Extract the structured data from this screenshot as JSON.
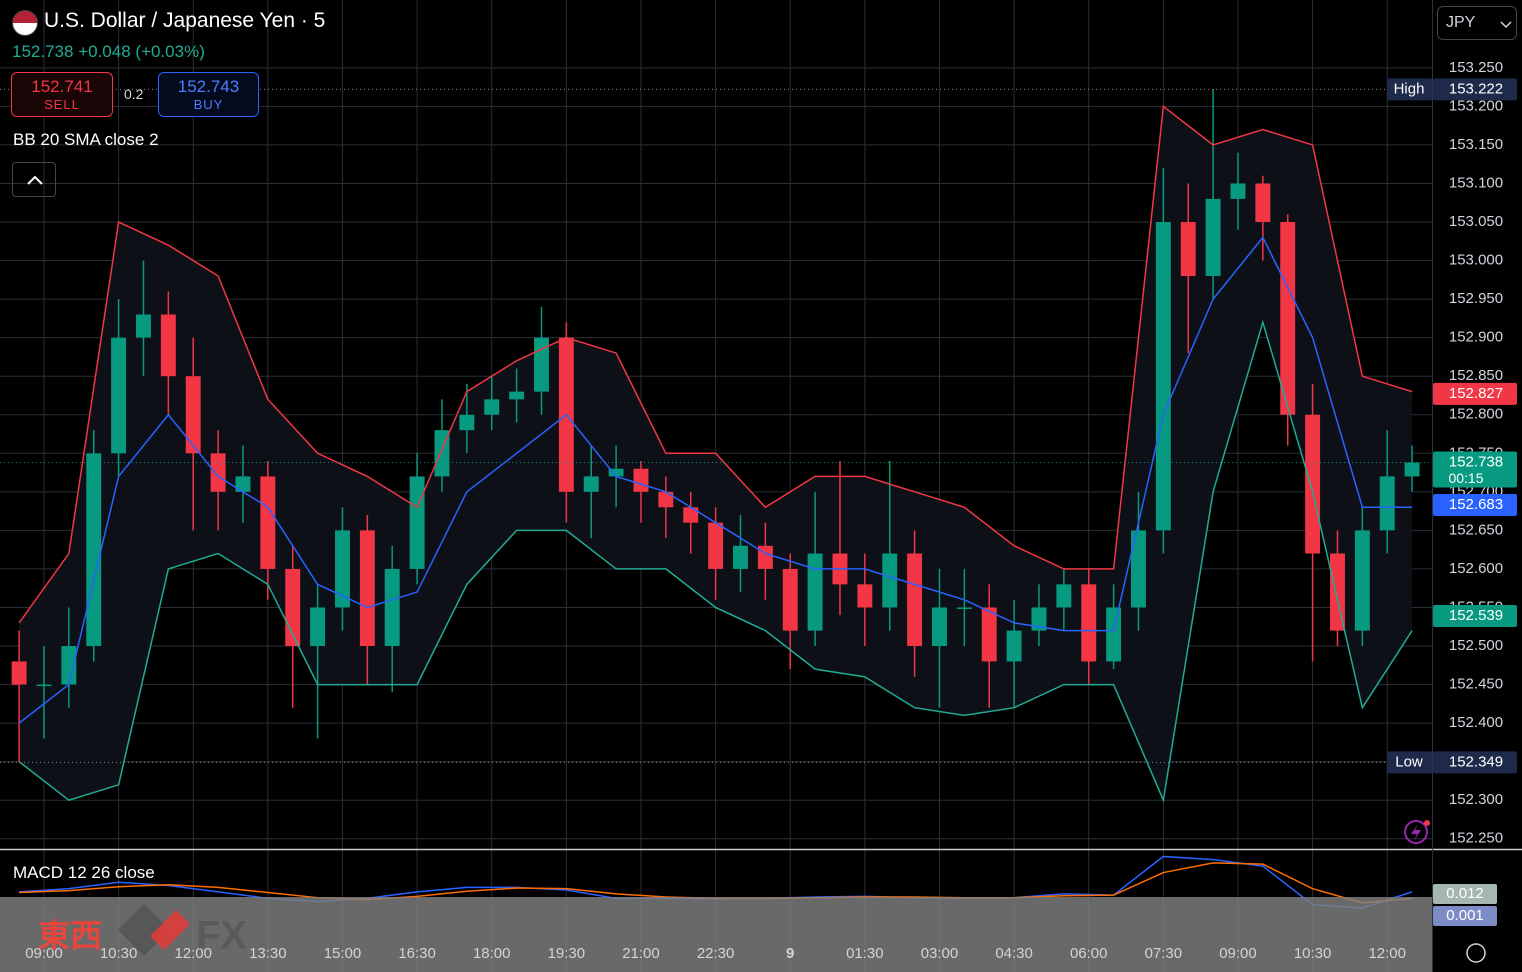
{
  "header": {
    "title": "U.S. Dollar / Japanese Yen · 5",
    "last": "152.738",
    "change": "+0.048",
    "change_pct": "(+0.03%)",
    "sell_price": "152.741",
    "sell_label": "SELL",
    "spread": "0.2",
    "buy_price": "152.743",
    "buy_label": "BUY",
    "indicator": "BB 20 SMA close 2",
    "currency": "JPY",
    "watermark_cn": "東西",
    "watermark_fx": "FX"
  },
  "chart_data": [
    {
      "type": "candlestick",
      "up_color": "#089981",
      "down_color": "#f23645",
      "grid": true,
      "x": [
        -0.5,
        0,
        0.5,
        1,
        1.5,
        2,
        2.5,
        3,
        3.5,
        4,
        4.5,
        5,
        5.5,
        6,
        6.5,
        7,
        7.5,
        8,
        8.5,
        9,
        9.5,
        10,
        10.5,
        11,
        11.5,
        12,
        12.5,
        13,
        13.5,
        14,
        14.5,
        15,
        15.5,
        16,
        16.5,
        17,
        17.5,
        18,
        18.5,
        19,
        19.5,
        20,
        20.5,
        21,
        21.5,
        22,
        22.5,
        23,
        23.5,
        24,
        24.5,
        25,
        25.5,
        26,
        26.5,
        27,
        27.5
      ],
      "open": [
        152.48,
        152.45,
        152.45,
        152.5,
        152.75,
        152.9,
        152.93,
        152.85,
        152.75,
        152.7,
        152.72,
        152.6,
        152.5,
        152.55,
        152.65,
        152.5,
        152.6,
        152.72,
        152.78,
        152.8,
        152.82,
        152.83,
        152.9,
        152.7,
        152.72,
        152.73,
        152.7,
        152.68,
        152.66,
        152.6,
        152.63,
        152.6,
        152.52,
        152.62,
        152.58,
        152.55,
        152.62,
        152.5,
        152.55,
        152.55,
        152.48,
        152.52,
        152.55,
        152.58,
        152.48,
        152.55,
        152.65,
        153.05,
        152.98,
        153.08,
        153.1,
        153.05,
        152.8,
        152.62,
        152.52,
        152.65,
        152.72
      ],
      "high": [
        152.52,
        152.5,
        152.55,
        152.78,
        152.95,
        153,
        152.96,
        152.9,
        152.78,
        152.76,
        152.74,
        152.63,
        152.58,
        152.68,
        152.67,
        152.63,
        152.75,
        152.82,
        152.84,
        152.85,
        152.86,
        152.94,
        152.92,
        152.76,
        152.76,
        152.74,
        152.72,
        152.7,
        152.68,
        152.67,
        152.66,
        152.62,
        152.7,
        152.74,
        152.62,
        152.74,
        152.65,
        152.6,
        152.6,
        152.58,
        152.56,
        152.58,
        152.6,
        152.6,
        152.58,
        152.7,
        153.12,
        153.1,
        153.222,
        153.14,
        153.11,
        153.06,
        152.84,
        152.65,
        152.68,
        152.78,
        152.76
      ],
      "low": [
        152.35,
        152.38,
        152.42,
        152.48,
        152.72,
        152.85,
        152.8,
        152.65,
        152.65,
        152.66,
        152.56,
        152.42,
        152.38,
        152.52,
        152.45,
        152.44,
        152.58,
        152.7,
        152.75,
        152.78,
        152.79,
        152.8,
        152.66,
        152.64,
        152.68,
        152.66,
        152.64,
        152.62,
        152.56,
        152.57,
        152.56,
        152.47,
        152.5,
        152.54,
        152.5,
        152.52,
        152.46,
        152.42,
        152.5,
        152.42,
        152.42,
        152.5,
        152.52,
        152.45,
        152.47,
        152.52,
        152.62,
        152.88,
        152.95,
        153.04,
        153,
        152.76,
        152.48,
        152.5,
        152.5,
        152.62,
        152.7
      ],
      "close": [
        152.45,
        152.45,
        152.5,
        152.75,
        152.9,
        152.93,
        152.85,
        152.75,
        152.7,
        152.72,
        152.6,
        152.5,
        152.55,
        152.65,
        152.5,
        152.6,
        152.72,
        152.78,
        152.8,
        152.82,
        152.83,
        152.9,
        152.7,
        152.72,
        152.73,
        152.7,
        152.68,
        152.66,
        152.6,
        152.63,
        152.6,
        152.52,
        152.62,
        152.58,
        152.55,
        152.62,
        152.5,
        152.55,
        152.55,
        152.48,
        152.52,
        152.55,
        152.58,
        152.48,
        152.55,
        152.65,
        153.05,
        152.98,
        153.08,
        153.1,
        153.05,
        152.8,
        152.62,
        152.52,
        152.65,
        152.72,
        152.738
      ],
      "band_fill": "#0d1117",
      "overlay_x": [
        -0.5,
        0.5,
        1.5,
        2.5,
        3.5,
        4.5,
        5.5,
        6.5,
        7.5,
        8.5,
        9.5,
        10.5,
        11.5,
        12.5,
        13.5,
        14.5,
        15.5,
        16.5,
        17.5,
        18.5,
        19.5,
        20.5,
        21.5,
        22.5,
        23.5,
        24.5,
        25.5,
        26.5,
        27.5
      ],
      "overlays": [
        {
          "color": "#f23645",
          "values": [
            152.53,
            152.62,
            153.05,
            153.02,
            152.98,
            152.82,
            152.75,
            152.72,
            152.68,
            152.83,
            152.87,
            152.9,
            152.88,
            152.75,
            152.75,
            152.68,
            152.72,
            152.72,
            152.7,
            152.68,
            152.63,
            152.6,
            152.6,
            153.2,
            153.15,
            153.17,
            153.15,
            152.85,
            152.83
          ]
        },
        {
          "color": "#2962ff",
          "values": [
            152.4,
            152.45,
            152.72,
            152.8,
            152.72,
            152.68,
            152.58,
            152.55,
            152.57,
            152.7,
            152.75,
            152.8,
            152.72,
            152.7,
            152.66,
            152.62,
            152.6,
            152.6,
            152.58,
            152.56,
            152.53,
            152.52,
            152.52,
            152.8,
            152.95,
            153.03,
            152.9,
            152.68,
            152.68
          ]
        },
        {
          "color": "#22ab94",
          "values": [
            152.35,
            152.3,
            152.32,
            152.6,
            152.62,
            152.58,
            152.45,
            152.45,
            152.45,
            152.58,
            152.65,
            152.65,
            152.6,
            152.6,
            152.55,
            152.52,
            152.47,
            152.46,
            152.42,
            152.41,
            152.42,
            152.45,
            152.45,
            152.3,
            152.7,
            152.92,
            152.7,
            152.42,
            152.52
          ]
        }
      ],
      "xlim": [
        -0.884,
        27.9
      ],
      "xticks": [
        {
          "value": 0,
          "label": "09:00"
        },
        {
          "value": 1.5,
          "label": "10:30"
        },
        {
          "value": 3,
          "label": "12:00"
        },
        {
          "value": 4.5,
          "label": "13:30"
        },
        {
          "value": 6,
          "label": "15:00"
        },
        {
          "value": 7.5,
          "label": "16:30"
        },
        {
          "value": 9,
          "label": "18:00"
        },
        {
          "value": 10.5,
          "label": "19:30"
        },
        {
          "value": 12,
          "label": "21:00"
        },
        {
          "value": 13.5,
          "label": "22:30"
        },
        {
          "value": 15,
          "label": "9"
        },
        {
          "value": 16.5,
          "label": "01:30"
        },
        {
          "value": 18,
          "label": "03:00"
        },
        {
          "value": 19.5,
          "label": "04:30"
        },
        {
          "value": 21,
          "label": "06:00"
        },
        {
          "value": 22.5,
          "label": "07:30"
        },
        {
          "value": 24,
          "label": "09:00"
        },
        {
          "value": 25.5,
          "label": "10:30"
        },
        {
          "value": 27,
          "label": "12:00"
        }
      ],
      "ylim": [
        152.238,
        153.338
      ],
      "yticks": [
        {
          "value": 152.25,
          "label": "152.250"
        },
        {
          "value": 152.3,
          "label": "152.300"
        },
        {
          "value": 152.35,
          "label": "152.350"
        },
        {
          "value": 152.4,
          "label": "152.400"
        },
        {
          "value": 152.45,
          "label": "152.450"
        },
        {
          "value": 152.5,
          "label": "152.500"
        },
        {
          "value": 152.55,
          "label": "152.550"
        },
        {
          "value": 152.6,
          "label": "152.600"
        },
        {
          "value": 152.65,
          "label": "152.650"
        },
        {
          "value": 152.7,
          "label": "152.700"
        },
        {
          "value": 152.75,
          "label": "152.750"
        },
        {
          "value": 152.8,
          "label": "152.800"
        },
        {
          "value": 152.85,
          "label": "152.850"
        },
        {
          "value": 152.9,
          "label": "152.900"
        },
        {
          "value": 152.95,
          "label": "152.950"
        },
        {
          "value": 153,
          "label": "153.000"
        },
        {
          "value": 153.05,
          "label": "153.050"
        },
        {
          "value": 153.1,
          "label": "153.100"
        },
        {
          "value": 153.15,
          "label": "153.150"
        },
        {
          "value": 153.2,
          "label": "153.200"
        },
        {
          "value": 153.25,
          "label": "153.250"
        }
      ],
      "price_labels": [
        {
          "value": 153.222,
          "tag": "High",
          "color": "#1e2a4a"
        },
        {
          "value": 152.827,
          "color": "#f23645"
        },
        {
          "value": 152.738,
          "sub": "00:15",
          "color": "#089981"
        },
        {
          "value": 152.683,
          "color": "#2962ff"
        },
        {
          "value": 152.539,
          "color": "#089981"
        },
        {
          "value": 152.349,
          "tag": "Low",
          "color": "#1e2a4a"
        }
      ]
    },
    {
      "type": "line",
      "title": "MACD 12 26 close",
      "x": [
        -0.5,
        0.5,
        1.5,
        2.5,
        3.5,
        4.5,
        5.5,
        6.5,
        7.5,
        8.5,
        9.5,
        10.5,
        11.5,
        12.5,
        13.5,
        14.5,
        15.5,
        16.5,
        17.5,
        18.5,
        19.5,
        20.5,
        21.5,
        22.5,
        23.5,
        24.5,
        25.5,
        26.5,
        27.5
      ],
      "series": [
        {
          "color": "#2962ff",
          "values": [
            0.005,
            0.01,
            0.02,
            0.015,
            0.005,
            -0.005,
            -0.01,
            -0.005,
            0.005,
            0.012,
            0.012,
            0.008,
            -0.005,
            -0.005,
            -0.006,
            -0.005,
            -0.003,
            -0.002,
            -0.004,
            -0.005,
            -0.004,
            0.002,
            0,
            0.06,
            0.055,
            0.045,
            -0.015,
            -0.02,
            0.005
          ]
        },
        {
          "color": "#ff6d00",
          "values": [
            0.004,
            0.007,
            0.013,
            0.016,
            0.012,
            0.004,
            -0.004,
            -0.007,
            -0.002,
            0.006,
            0.011,
            0.01,
            0.002,
            -0.003,
            -0.005,
            -0.005,
            -0.004,
            -0.003,
            -0.003,
            -0.004,
            -0.004,
            -0.001,
            0,
            0.035,
            0.05,
            0.048,
            0.01,
            -0.012,
            -0.005
          ]
        }
      ],
      "xlim": [
        -0.884,
        27.9
      ],
      "ylim": [
        -0.02,
        0.07
      ],
      "price_labels": [
        {
          "value": 0.012,
          "color": "#a6b6b3"
        },
        {
          "value": 0.001,
          "color": "#7d8cc6"
        }
      ]
    }
  ]
}
